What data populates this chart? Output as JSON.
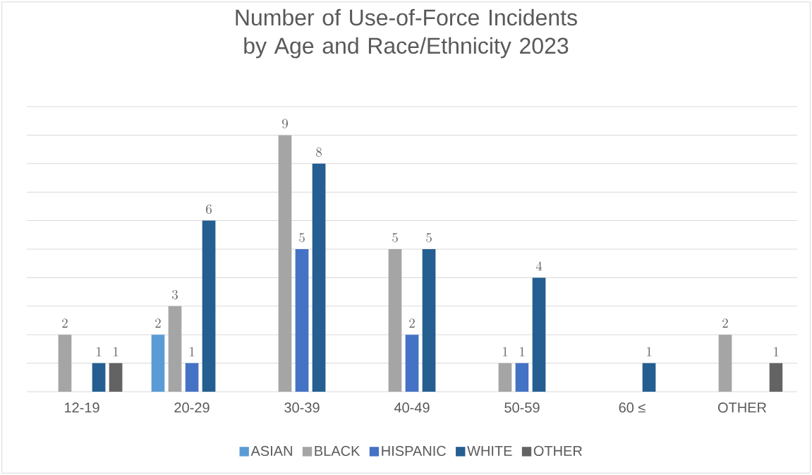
{
  "chart_data": {
    "type": "bar",
    "title": "Number of Use-of-Force Incidents by Age and Race/Ethnicity 2023",
    "categories": [
      "12-19",
      "20-29",
      "30-39",
      "40-49",
      "50-59",
      "60 ≤",
      "OTHER"
    ],
    "series": [
      {
        "name": "ASIAN",
        "color": "#5b9bd5",
        "values": [
          null,
          2,
          null,
          null,
          null,
          null,
          null
        ]
      },
      {
        "name": "BLACK",
        "color": "#a5a5a5",
        "values": [
          2,
          3,
          9,
          5,
          1,
          null,
          2
        ]
      },
      {
        "name": "HISPANIC",
        "color": "#4472c4",
        "values": [
          null,
          1,
          5,
          2,
          1,
          null,
          null
        ]
      },
      {
        "name": "WHITE",
        "color": "#255e91",
        "values": [
          1,
          6,
          8,
          5,
          4,
          1,
          null
        ]
      },
      {
        "name": "OTHER",
        "color": "#636363",
        "values": [
          1,
          null,
          null,
          null,
          null,
          null,
          1
        ]
      }
    ],
    "ylim": [
      0,
      10
    ],
    "yticks": [
      {
        "value": 0,
        "label": null
      },
      {
        "value": 1,
        "label": null
      },
      {
        "value": 2,
        "label": null
      },
      {
        "value": 3,
        "label": null
      },
      {
        "value": 4,
        "label": null
      },
      {
        "value": 5,
        "label": null
      },
      {
        "value": 6,
        "label": null
      },
      {
        "value": 7,
        "label": null
      },
      {
        "value": 8,
        "label": null
      },
      {
        "value": 9,
        "label": null
      },
      {
        "value": 10,
        "label": null
      }
    ],
    "tick_labels": "x",
    "grid": "y",
    "legend": "bottom",
    "data_labels": true
  }
}
